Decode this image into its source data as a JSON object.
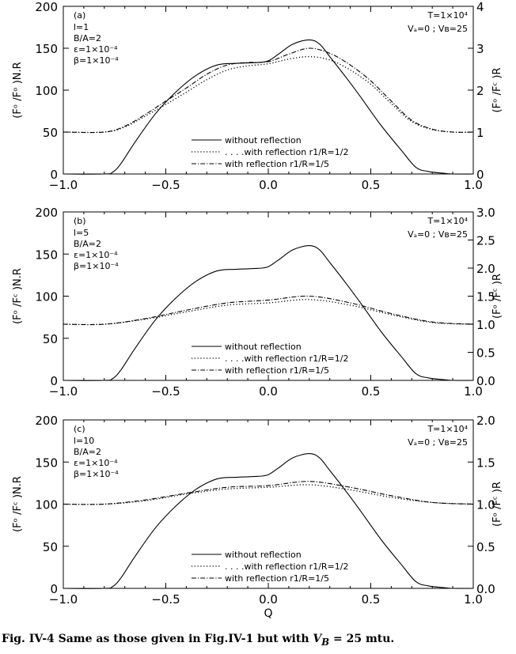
{
  "chart_data": [
    {
      "type": "line",
      "panel_label": "(a)",
      "params": [
        "l=1",
        "B/A=2",
        "ε=1×10⁻⁴",
        "β=1×10⁻⁴"
      ],
      "params_right": [
        "T=1×10⁴",
        "Vₐ=0 ; Vʙ=25"
      ],
      "ylabel_left": "(Fᵒ /Fᵒ )N.R",
      "ylabel_right": "(Fᵒ /Fᶜ )R",
      "xlim": [
        -1.0,
        1.0
      ],
      "ylim_left": [
        0,
        200
      ],
      "ylim_right": [
        0,
        4
      ],
      "xticks": [
        "−1.0",
        "−0.5",
        "0.0",
        "0.5",
        "1.0"
      ],
      "yticks_left": [
        "0",
        "50",
        "100",
        "150",
        "200"
      ],
      "yticks_right": [
        "0",
        "1",
        "2",
        "3",
        "4"
      ],
      "legend": [
        "without reflection",
        ". . . .with reflection r1/R=1/2",
        "with reflection r1/R=1/5"
      ],
      "series": [
        {
          "name": "without reflection",
          "axis": "left",
          "style": "solid",
          "x": [
            -1.0,
            -0.8,
            -0.76,
            -0.72,
            -0.65,
            -0.55,
            -0.45,
            -0.35,
            -0.25,
            -0.15,
            -0.05,
            0.0,
            0.05,
            0.12,
            0.2,
            0.25,
            0.3,
            0.38,
            0.45,
            0.55,
            0.65,
            0.72,
            0.78,
            0.85,
            0.9,
            1.0
          ],
          "values": [
            0,
            0,
            2,
            12,
            38,
            72,
            98,
            118,
            130,
            132,
            133,
            135,
            143,
            155,
            160,
            155,
            140,
            115,
            92,
            58,
            28,
            8,
            3,
            1,
            0,
            0
          ]
        },
        {
          "name": "with reflection r1/R=1/2",
          "axis": "right",
          "style": "dotted",
          "x": [
            -1.0,
            -0.8,
            -0.7,
            -0.6,
            -0.5,
            -0.4,
            -0.3,
            -0.2,
            -0.1,
            0.0,
            0.1,
            0.2,
            0.3,
            0.4,
            0.5,
            0.6,
            0.7,
            0.8,
            0.9,
            1.0
          ],
          "values": [
            1.0,
            1.0,
            1.12,
            1.38,
            1.66,
            1.95,
            2.25,
            2.48,
            2.58,
            2.63,
            2.74,
            2.8,
            2.72,
            2.48,
            2.14,
            1.68,
            1.25,
            1.06,
            1.0,
            1.0
          ]
        },
        {
          "name": "with reflection r1/R=1/5",
          "axis": "right",
          "style": "dashdot",
          "x": [
            -1.0,
            -0.8,
            -0.7,
            -0.6,
            -0.5,
            -0.4,
            -0.3,
            -0.2,
            -0.1,
            0.0,
            0.1,
            0.2,
            0.3,
            0.4,
            0.5,
            0.6,
            0.7,
            0.8,
            0.9,
            1.0
          ],
          "values": [
            1.0,
            1.0,
            1.14,
            1.42,
            1.74,
            2.05,
            2.38,
            2.6,
            2.66,
            2.68,
            2.86,
            3.0,
            2.88,
            2.6,
            2.22,
            1.74,
            1.28,
            1.07,
            1.0,
            1.0
          ]
        }
      ]
    },
    {
      "type": "line",
      "panel_label": "(b)",
      "params": [
        "l=5",
        "B/A=2",
        "ε=1×10⁻⁴",
        "β=1×10⁻⁴"
      ],
      "params_right": [
        "T=1×10⁴",
        "Vₐ=0 ; Vʙ=25"
      ],
      "ylabel_left": "(Fᵒ /Fᶜ )N.R",
      "ylabel_right": "(Fᵒ /Fᶜ )R",
      "xlim": [
        -1.0,
        1.0
      ],
      "ylim_left": [
        0,
        200
      ],
      "ylim_right": [
        0,
        3
      ],
      "xticks": [
        "−1.0",
        "−0.5",
        "0.0",
        "0.5",
        "1.0"
      ],
      "yticks_left": [
        "0",
        "50",
        "100",
        "150",
        "200"
      ],
      "yticks_right": [
        "0.0",
        "0.5",
        "1.0",
        "1.5",
        "2.0",
        "2.5",
        "3.0"
      ],
      "legend": [
        "without reflection",
        ". . . .with reflection r1/R=1/2",
        "with reflection r1/R=1/5"
      ],
      "series": [
        {
          "name": "without reflection",
          "axis": "left",
          "style": "solid",
          "x": [
            -1.0,
            -0.8,
            -0.76,
            -0.72,
            -0.65,
            -0.55,
            -0.45,
            -0.35,
            -0.25,
            -0.15,
            -0.05,
            0.0,
            0.05,
            0.12,
            0.2,
            0.25,
            0.3,
            0.38,
            0.45,
            0.55,
            0.65,
            0.72,
            0.78,
            0.85,
            0.9,
            1.0
          ],
          "values": [
            0,
            0,
            2,
            12,
            38,
            72,
            98,
            118,
            130,
            132,
            133,
            135,
            143,
            155,
            160,
            155,
            140,
            115,
            92,
            58,
            28,
            8,
            3,
            1,
            0,
            0
          ]
        },
        {
          "name": "with reflection r1/R=1/2",
          "axis": "right",
          "style": "dotted",
          "x": [
            -1.0,
            -0.8,
            -0.6,
            -0.4,
            -0.2,
            0.0,
            0.2,
            0.4,
            0.6,
            0.8,
            1.0
          ],
          "values": [
            1.0,
            1.0,
            1.09,
            1.22,
            1.34,
            1.38,
            1.44,
            1.34,
            1.17,
            1.03,
            1.0
          ]
        },
        {
          "name": "with reflection r1/R=1/5",
          "axis": "right",
          "style": "dashdot",
          "x": [
            -1.0,
            -0.8,
            -0.6,
            -0.4,
            -0.2,
            0.0,
            0.2,
            0.4,
            0.6,
            0.8,
            1.0
          ],
          "values": [
            1.0,
            1.0,
            1.1,
            1.25,
            1.38,
            1.43,
            1.5,
            1.38,
            1.19,
            1.04,
            1.0
          ]
        }
      ]
    },
    {
      "type": "line",
      "panel_label": "(c)",
      "params": [
        "l=10",
        "B/A=2",
        "ε=1×10⁻⁴",
        "β=1×10⁻⁴"
      ],
      "params_right": [
        "T=1×10⁴",
        "Vₐ=0 ; Vʙ=25"
      ],
      "ylabel_left": "(Fᵒ /Fᶜ )N.R",
      "ylabel_right": "(Fᵒ /Fᶜ )R",
      "xlabel": "Q",
      "xlim": [
        -1.0,
        1.0
      ],
      "ylim_left": [
        0,
        200
      ],
      "ylim_right": [
        0,
        2
      ],
      "xticks": [
        "−1.0",
        "−0.5",
        "0.0",
        "0.5",
        "1.0"
      ],
      "yticks_left": [
        "0",
        "50",
        "100",
        "150",
        "200"
      ],
      "yticks_right": [
        "0.0",
        "0.5",
        "1.0",
        "1.5",
        "2.0"
      ],
      "legend": [
        "without reflection",
        ". . . .with reflection r1/R=1/2",
        "with reflection r1/R=1/5"
      ],
      "series": [
        {
          "name": "without reflection",
          "axis": "left",
          "style": "solid",
          "x": [
            -1.0,
            -0.8,
            -0.76,
            -0.72,
            -0.65,
            -0.55,
            -0.45,
            -0.35,
            -0.25,
            -0.15,
            -0.05,
            0.0,
            0.05,
            0.12,
            0.2,
            0.25,
            0.3,
            0.38,
            0.45,
            0.55,
            0.65,
            0.72,
            0.78,
            0.85,
            0.9,
            1.0
          ],
          "values": [
            0,
            0,
            2,
            12,
            38,
            72,
            98,
            118,
            130,
            132,
            133,
            135,
            143,
            155,
            160,
            155,
            140,
            115,
            92,
            58,
            28,
            8,
            3,
            1,
            0,
            0
          ]
        },
        {
          "name": "with reflection r1/R=1/2",
          "axis": "right",
          "style": "dotted",
          "x": [
            -1.0,
            -0.8,
            -0.6,
            -0.4,
            -0.2,
            0.0,
            0.2,
            0.4,
            0.6,
            0.8,
            1.0
          ],
          "values": [
            1.0,
            1.0,
            1.04,
            1.12,
            1.18,
            1.2,
            1.23,
            1.17,
            1.08,
            1.02,
            1.0
          ]
        },
        {
          "name": "with reflection r1/R=1/5",
          "axis": "right",
          "style": "dashdot",
          "x": [
            -1.0,
            -0.8,
            -0.6,
            -0.4,
            -0.2,
            0.0,
            0.2,
            0.4,
            0.6,
            0.8,
            1.0
          ],
          "values": [
            1.0,
            1.0,
            1.05,
            1.13,
            1.2,
            1.22,
            1.27,
            1.2,
            1.1,
            1.02,
            1.0
          ]
        }
      ]
    }
  ],
  "caption": {
    "prefix": "Fig. IV-4 Same as those given in Fig.IV-1 but with ",
    "math": "V",
    "math_sub": "B",
    "suffix": " = 25 mtu."
  }
}
